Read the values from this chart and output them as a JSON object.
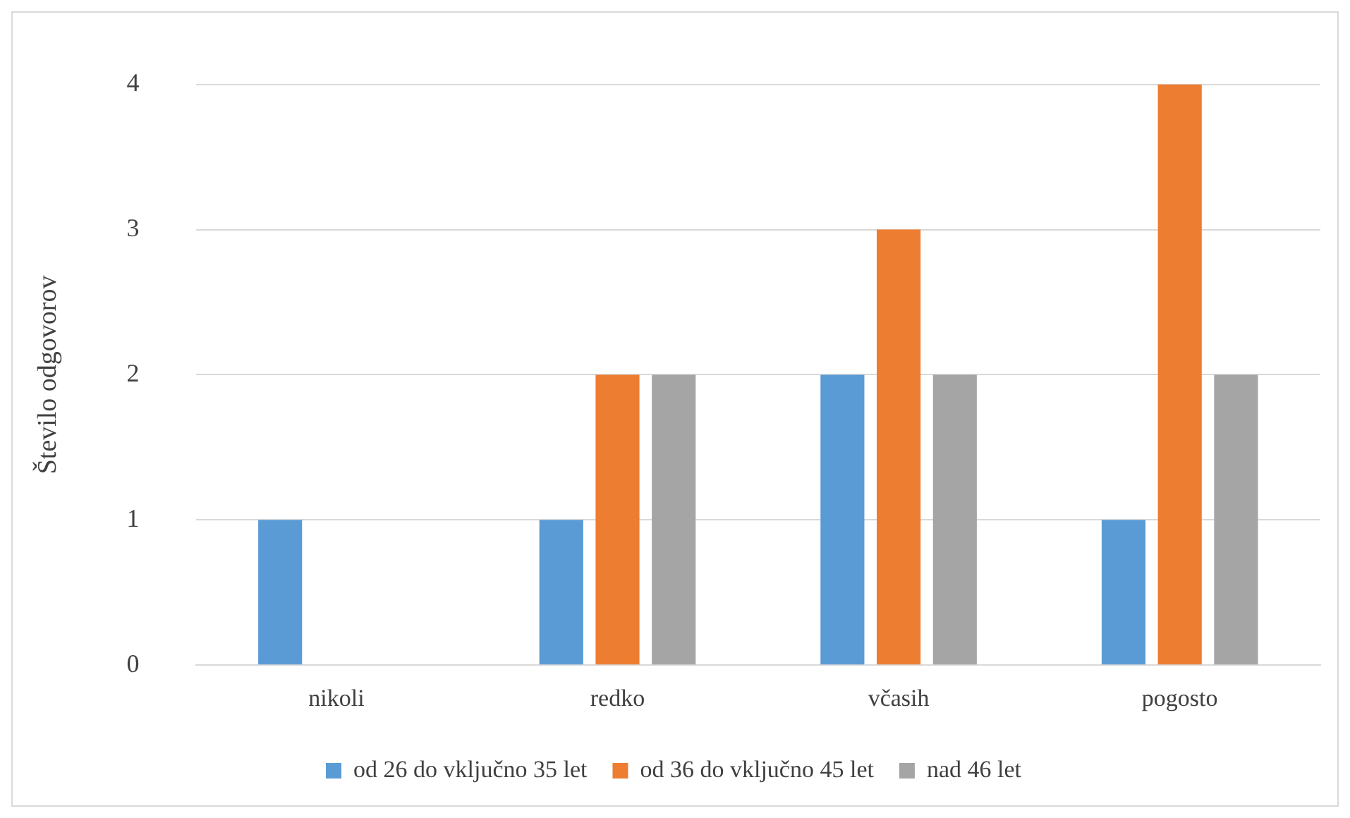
{
  "chart_data": {
    "type": "bar",
    "ylabel": "Število odgovorov",
    "categories": [
      "nikoli",
      "redko",
      "včasih",
      "pogosto"
    ],
    "series": [
      {
        "name": "od 26 do vključno 35 let",
        "color": "#5b9bd5",
        "values": [
          1,
          1,
          2,
          1
        ]
      },
      {
        "name": "od 36 do vključno 45 let",
        "color": "#ed7d31",
        "values": [
          0,
          2,
          3,
          4
        ]
      },
      {
        "name": "nad 46 let",
        "color": "#a5a5a5",
        "values": [
          0,
          2,
          2,
          2
        ]
      }
    ],
    "ylim": [
      0,
      4
    ],
    "yticks": [
      0,
      1,
      2,
      3,
      4
    ],
    "grid": "y",
    "legend": "bottom"
  }
}
